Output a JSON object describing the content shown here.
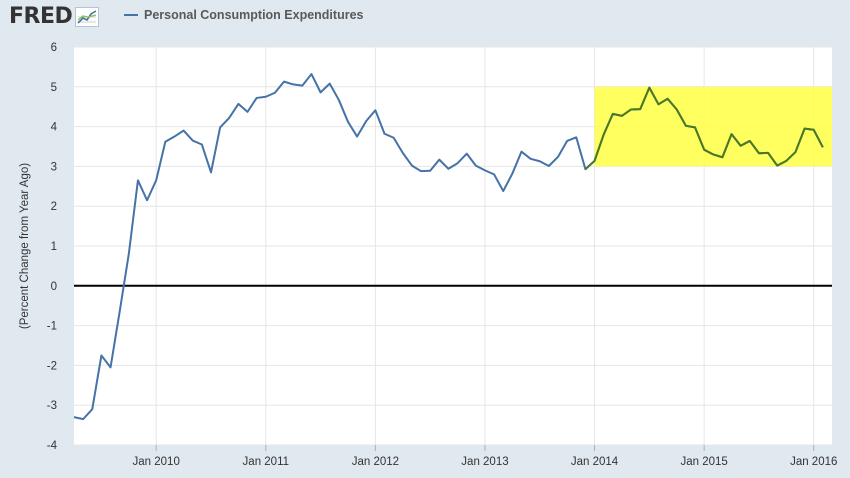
{
  "app": {
    "logo_text": "FRED",
    "logo_icon": "trend-chart-icon"
  },
  "legend": {
    "label": "Personal Consumption Expenditures"
  },
  "colors": {
    "background": "#e1e9f0",
    "plot_background": "#ffffff",
    "series": "#4572a7",
    "highlight_fill": "#ffff44",
    "highlight_line": "#4a7a1e",
    "zero_line": "#000000"
  },
  "chart_data": {
    "type": "line",
    "title": "",
    "xlabel": "",
    "ylabel": "(Percent Change from Year Ago)",
    "ylim": [
      -4,
      6
    ],
    "yticks": [
      6,
      5,
      4,
      3,
      2,
      1,
      0,
      -1,
      -2,
      -3,
      -4
    ],
    "xlim": [
      "2009-04-01",
      "2016-03-01"
    ],
    "xticks": [
      "Jan 2010",
      "Jan 2011",
      "Jan 2012",
      "Jan 2013",
      "Jan 2014",
      "Jan 2015",
      "Jan 2016"
    ],
    "grid": true,
    "zero_line": true,
    "highlight": {
      "x_start": "2014-01-01",
      "x_end": "2016-03-01",
      "y_start": 3.0,
      "y_end": 5.0
    },
    "series": [
      {
        "start": "2009-04",
        "frequency": "monthly",
        "values": [
          -3.3,
          -3.35,
          -3.1,
          -1.75,
          -2.05,
          -0.65,
          0.8,
          2.65,
          2.15,
          2.65,
          3.62,
          3.75,
          3.9,
          3.65,
          3.55,
          2.85,
          3.98,
          4.22,
          4.57,
          4.37,
          4.72,
          4.75,
          4.85,
          5.13,
          5.06,
          5.03,
          5.32,
          4.86,
          5.08,
          4.67,
          4.12,
          3.75,
          4.14,
          4.41,
          3.82,
          3.72,
          3.34,
          3.02,
          2.88,
          2.89,
          3.17,
          2.94,
          3.08,
          3.32,
          3.02,
          2.9,
          2.8,
          2.38,
          2.82,
          3.37,
          3.19,
          3.13,
          3.01,
          3.24,
          3.64,
          3.73,
          2.93,
          3.14,
          3.8,
          4.32,
          4.27,
          4.43,
          4.44,
          4.98,
          4.56,
          4.7,
          4.43,
          4.02,
          3.98,
          3.42,
          3.3,
          3.23,
          3.81,
          3.52,
          3.64,
          3.33,
          3.34,
          3.02,
          3.14,
          3.36,
          3.95,
          3.92,
          3.48
        ]
      }
    ]
  }
}
